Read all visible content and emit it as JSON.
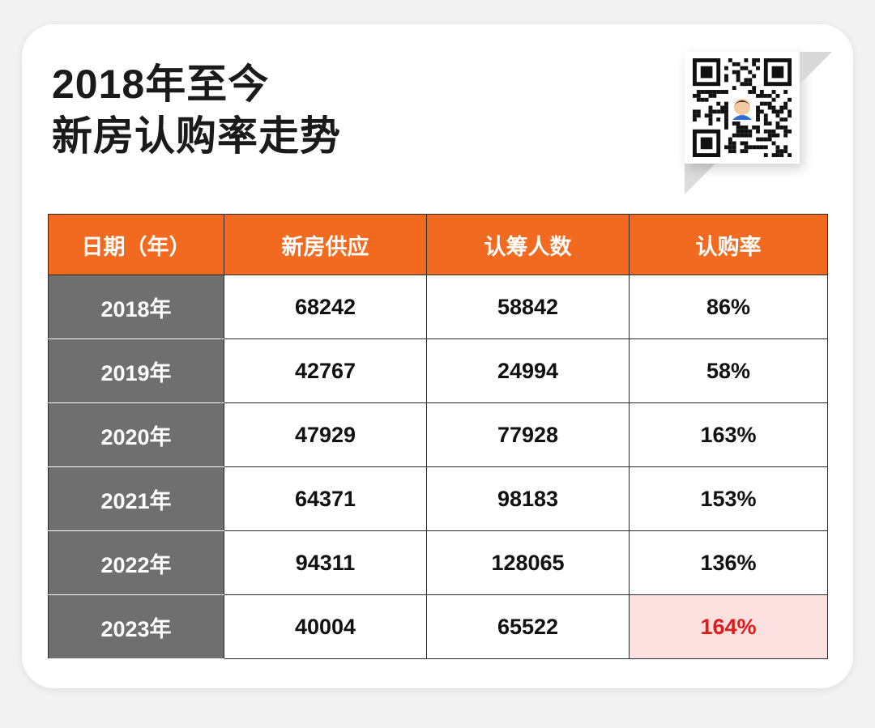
{
  "title_line1": "2018年至今",
  "title_line2": "新房认购率走势",
  "colors": {
    "header": "#f26a1f",
    "year_col": "#6f6f6f",
    "highlight_bg": "#fde0e0",
    "highlight_text": "#e01b1b"
  },
  "qr_icon": "qr-code-icon",
  "chart_data": {
    "type": "table",
    "columns": [
      "日期（年）",
      "新房供应",
      "认筹人数",
      "认购率"
    ],
    "rows": [
      [
        "2018年",
        "68242",
        "58842",
        "86%"
      ],
      [
        "2019年",
        "42767",
        "24994",
        "58%"
      ],
      [
        "2020年",
        "47929",
        "77928",
        "163%"
      ],
      [
        "2021年",
        "64371",
        "98183",
        "153%"
      ],
      [
        "2022年",
        "94311",
        "128065",
        "136%"
      ],
      [
        "2023年",
        "40004",
        "65522",
        "164%"
      ]
    ],
    "highlight": {
      "row": 5,
      "col": 3
    }
  }
}
